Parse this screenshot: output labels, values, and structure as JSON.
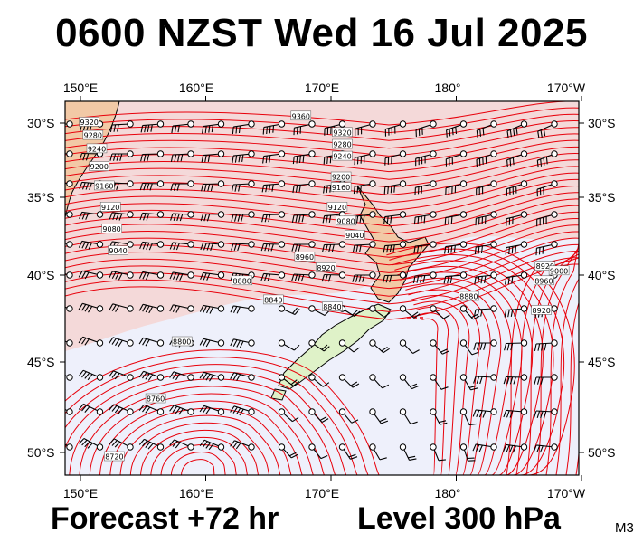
{
  "title": "0600 NZST Wed 16 Jul 2025",
  "footer": {
    "forecast": "Forecast +72 hr",
    "level": "Level 300 hPa",
    "code": "M3"
  },
  "axes": {
    "lon_labels": [
      "150°E",
      "160°E",
      "170°E",
      "180°",
      "170°W"
    ],
    "lon_values": [
      150,
      160,
      170,
      180,
      190
    ],
    "lat_labels": [
      "30°S",
      "35°S",
      "40°S",
      "45°S",
      "50°S"
    ],
    "lat_values": [
      -30,
      -35,
      -40,
      -45,
      -50
    ],
    "lon_range": [
      150,
      190
    ],
    "lat_range": [
      -28.8,
      -51.3
    ]
  },
  "colors": {
    "contour": "#e8000b",
    "land": "#dff2c8",
    "land_high": "#f2c9a6",
    "sea_high": "#f4d9d9",
    "sea_low": "#eef0fb",
    "coast": "#000000"
  },
  "contour_labels": [
    {
      "text": "9360",
      "lon": 167.6,
      "lat": -29.5
    },
    {
      "text": "9320",
      "lon": 170.9,
      "lat": -30.6
    },
    {
      "text": "9280",
      "lon": 170.9,
      "lat": -31.4
    },
    {
      "text": "9240",
      "lon": 170.9,
      "lat": -32.2
    },
    {
      "text": "9200",
      "lon": 170.8,
      "lat": -33.6
    },
    {
      "text": "9160",
      "lon": 170.8,
      "lat": -34.3
    },
    {
      "text": "9120",
      "lon": 170.5,
      "lat": -35.6
    },
    {
      "text": "9080",
      "lon": 171.2,
      "lat": -36.5
    },
    {
      "text": "9040",
      "lon": 171.9,
      "lat": -37.4
    },
    {
      "text": "8960",
      "lon": 167.9,
      "lat": -38.8
    },
    {
      "text": "8920",
      "lon": 169.6,
      "lat": -39.5
    },
    {
      "text": "8880",
      "lon": 162.9,
      "lat": -40.3
    },
    {
      "text": "8840",
      "lon": 165.4,
      "lat": -41.4
    },
    {
      "text": "8840",
      "lon": 170.1,
      "lat": -41.8
    },
    {
      "text": "8800",
      "lon": 158.1,
      "lat": -43.8
    },
    {
      "text": "8760",
      "lon": 156.0,
      "lat": -47.0
    },
    {
      "text": "8720",
      "lon": 152.7,
      "lat": -50.2
    },
    {
      "text": "9120",
      "lon": 152.4,
      "lat": -35.6
    },
    {
      "text": "9080",
      "lon": 152.5,
      "lat": -37.0
    },
    {
      "text": "9040",
      "lon": 153.0,
      "lat": -38.4
    },
    {
      "text": "9160",
      "lon": 151.9,
      "lat": -34.2
    },
    {
      "text": "9200",
      "lon": 151.5,
      "lat": -32.9
    },
    {
      "text": "9240",
      "lon": 151.3,
      "lat": -31.7
    },
    {
      "text": "9280",
      "lon": 151.0,
      "lat": -30.8
    },
    {
      "text": "9320",
      "lon": 150.7,
      "lat": -29.9
    },
    {
      "text": "8880",
      "lon": 181.0,
      "lat": -41.2
    },
    {
      "text": "8920",
      "lon": 187.1,
      "lat": -39.4
    },
    {
      "text": "8960",
      "lon": 187.0,
      "lat": -40.3
    },
    {
      "text": "9000",
      "lon": 188.2,
      "lat": -39.7
    },
    {
      "text": "8920",
      "lon": 186.8,
      "lat": -42.0
    }
  ]
}
